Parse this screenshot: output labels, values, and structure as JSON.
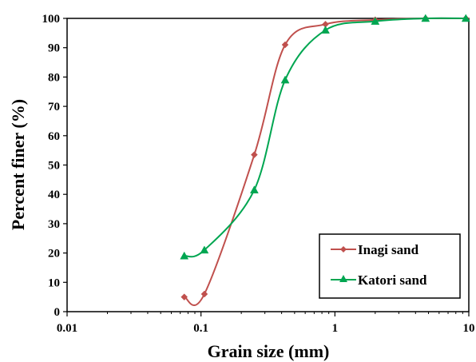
{
  "chart_data": {
    "type": "line",
    "xlabel": "Grain size (mm)",
    "ylabel": "Percent finer (%)",
    "xscale": "log",
    "xlim": [
      0.01,
      10
    ],
    "ylim": [
      0,
      100
    ],
    "x_ticks": [
      "0.01",
      "0.1",
      "1",
      "10"
    ],
    "y_ticks": [
      "0",
      "10",
      "20",
      "30",
      "40",
      "50",
      "60",
      "70",
      "80",
      "90",
      "100"
    ],
    "grid": false,
    "legend_position": "bottom-right",
    "series": [
      {
        "name": "Inagi sand",
        "color": "#C0504D",
        "marker": "diamond",
        "x": [
          0.075,
          0.106,
          0.25,
          0.425,
          0.85,
          2.0,
          4.75,
          9.5
        ],
        "y": [
          5,
          6,
          53.5,
          91,
          98,
          99.5,
          100,
          100
        ]
      },
      {
        "name": "Katori sand",
        "color": "#00A651",
        "marker": "triangle",
        "x": [
          0.075,
          0.106,
          0.25,
          0.425,
          0.85,
          2.0,
          4.75,
          9.5
        ],
        "y": [
          19,
          21,
          41.5,
          79,
          96,
          99,
          100,
          100
        ]
      }
    ]
  }
}
